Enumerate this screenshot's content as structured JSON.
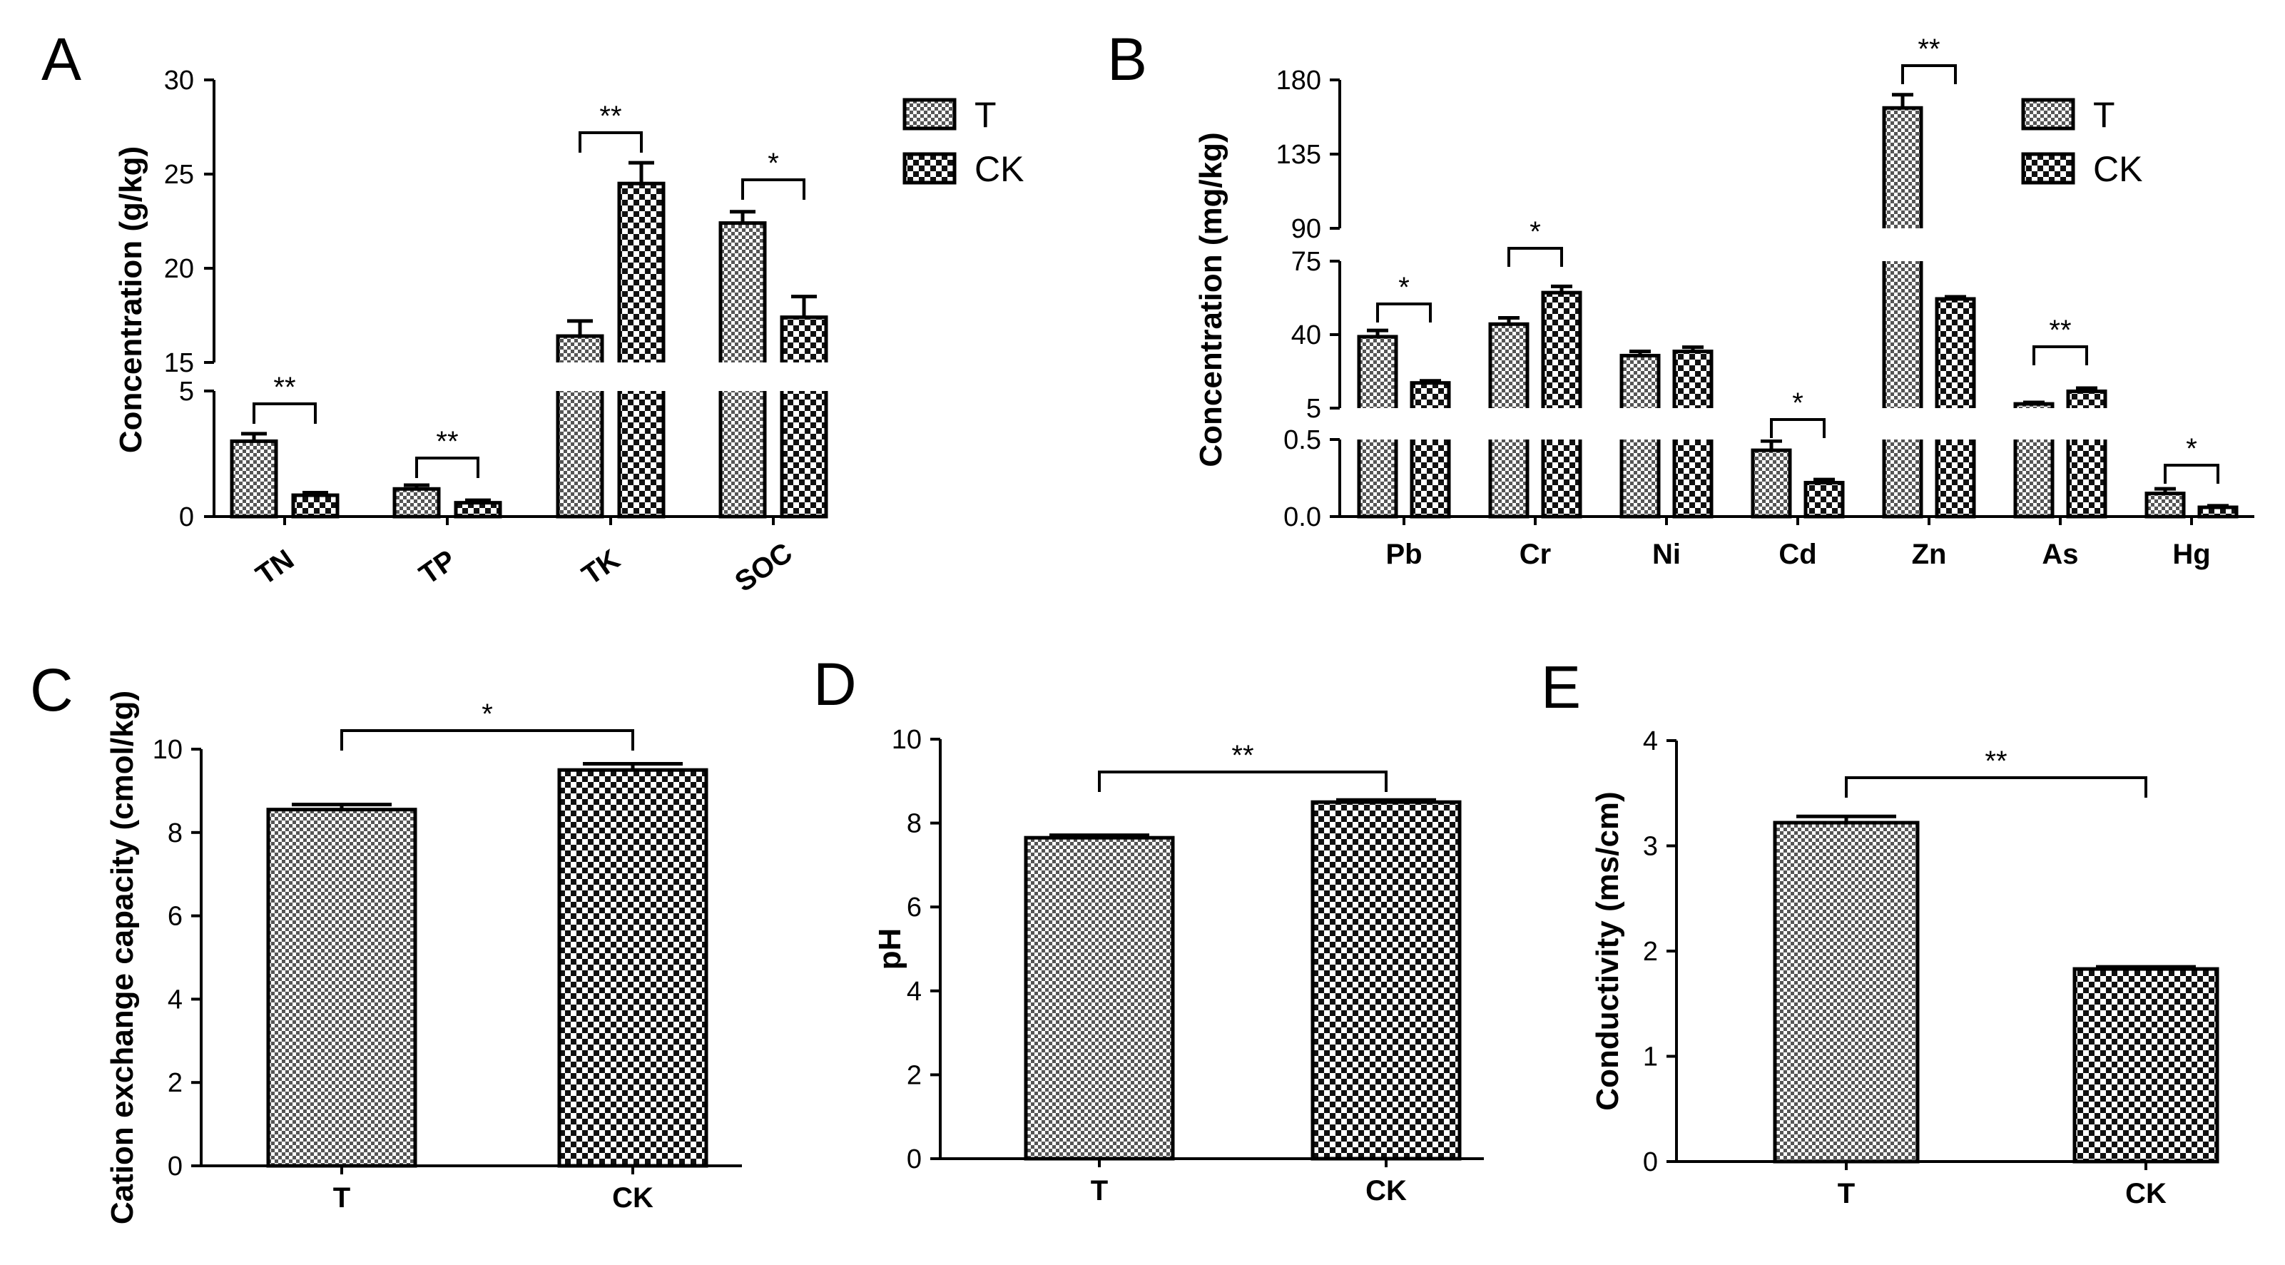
{
  "colors": {
    "ink": "#000000",
    "background": "#ffffff",
    "bar_fill_dark": "#555555",
    "bar_fill_light": "#ffffff"
  },
  "chart_data": [
    {
      "id": "A",
      "type": "bar",
      "panel_letter": "A",
      "ylabel": "Concentration (g/kg)",
      "categories": [
        "TN",
        "TP",
        "TK",
        "SOC"
      ],
      "series": [
        {
          "name": "T",
          "pattern": "fine-check",
          "values": [
            3.0,
            1.1,
            16.4,
            22.4
          ],
          "errors": [
            0.3,
            0.15,
            0.8,
            0.6
          ]
        },
        {
          "name": "CK",
          "pattern": "coarse-check",
          "values": [
            0.85,
            0.55,
            24.5,
            17.4
          ],
          "errors": [
            0.1,
            0.1,
            1.1,
            1.1
          ]
        }
      ],
      "y_break": {
        "segments": [
          {
            "range": [
              0,
              5
            ],
            "ticks": [
              0,
              5
            ]
          },
          {
            "range": [
              15,
              30
            ],
            "ticks": [
              15,
              20,
              25,
              30
            ]
          }
        ],
        "tick_labels": [
          "0",
          "5",
          "15",
          "20",
          "25",
          "30"
        ]
      },
      "significance": [
        "**",
        "**",
        "**",
        "*"
      ],
      "legend": [
        "T",
        "CK"
      ],
      "x_tick_rotation": "angled"
    },
    {
      "id": "B",
      "type": "bar",
      "panel_letter": "B",
      "ylabel": "Concentration (mg/kg)",
      "categories": [
        "Pb",
        "Cr",
        "Ni",
        "Cd",
        "Zn",
        "As",
        "Hg"
      ],
      "series": [
        {
          "name": "T",
          "pattern": "fine-check",
          "values": [
            39,
            45,
            30,
            0.43,
            163,
            7,
            0.15
          ],
          "errors": [
            3,
            3,
            2,
            0.06,
            8,
            0.7,
            0.03
          ]
        },
        {
          "name": "CK",
          "pattern": "coarse-check",
          "values": [
            17,
            60,
            32,
            0.22,
            57,
            13,
            0.06
          ],
          "errors": [
            1,
            3,
            2,
            0.02,
            1,
            1.5,
            0.01
          ]
        }
      ],
      "y_break": {
        "segments": [
          {
            "range": [
              0,
              0.5
            ],
            "ticks": [
              0.0,
              0.5
            ]
          },
          {
            "range": [
              5,
              75
            ],
            "ticks": [
              5,
              40,
              75
            ]
          },
          {
            "range": [
              90,
              180
            ],
            "ticks": [
              90,
              135,
              180
            ]
          }
        ],
        "tick_labels": [
          "0.0",
          "0.5",
          "5",
          "40",
          "75",
          "90",
          "135",
          "180"
        ]
      },
      "significance": [
        "*",
        "*",
        "",
        "*",
        "**",
        "**",
        "*"
      ],
      "legend": [
        "T",
        "CK"
      ]
    },
    {
      "id": "C",
      "type": "bar",
      "panel_letter": "C",
      "ylabel": "Cation exchange capacity (cmol/kg)",
      "categories": [
        "T",
        "CK"
      ],
      "values": [
        8.55,
        9.5
      ],
      "errors": [
        0.12,
        0.15
      ],
      "ylim": [
        0,
        10
      ],
      "yticks": [
        "0",
        "2",
        "4",
        "6",
        "8",
        "10"
      ],
      "significance": "*"
    },
    {
      "id": "D",
      "type": "bar",
      "panel_letter": "D",
      "ylabel": "pH",
      "categories": [
        "T",
        "CK"
      ],
      "values": [
        7.65,
        8.5
      ],
      "errors": [
        0.06,
        0.05
      ],
      "ylim": [
        0,
        10
      ],
      "yticks": [
        "0",
        "2",
        "4",
        "6",
        "8",
        "10"
      ],
      "significance": "**"
    },
    {
      "id": "E",
      "type": "bar",
      "panel_letter": "E",
      "ylabel": "Conductivity (ms/cm)",
      "categories": [
        "T",
        "CK"
      ],
      "values": [
        3.22,
        1.83
      ],
      "errors": [
        0.06,
        0.02
      ],
      "ylim": [
        0,
        4
      ],
      "yticks": [
        "0",
        "1",
        "2",
        "3",
        "4"
      ],
      "significance": "**"
    }
  ]
}
